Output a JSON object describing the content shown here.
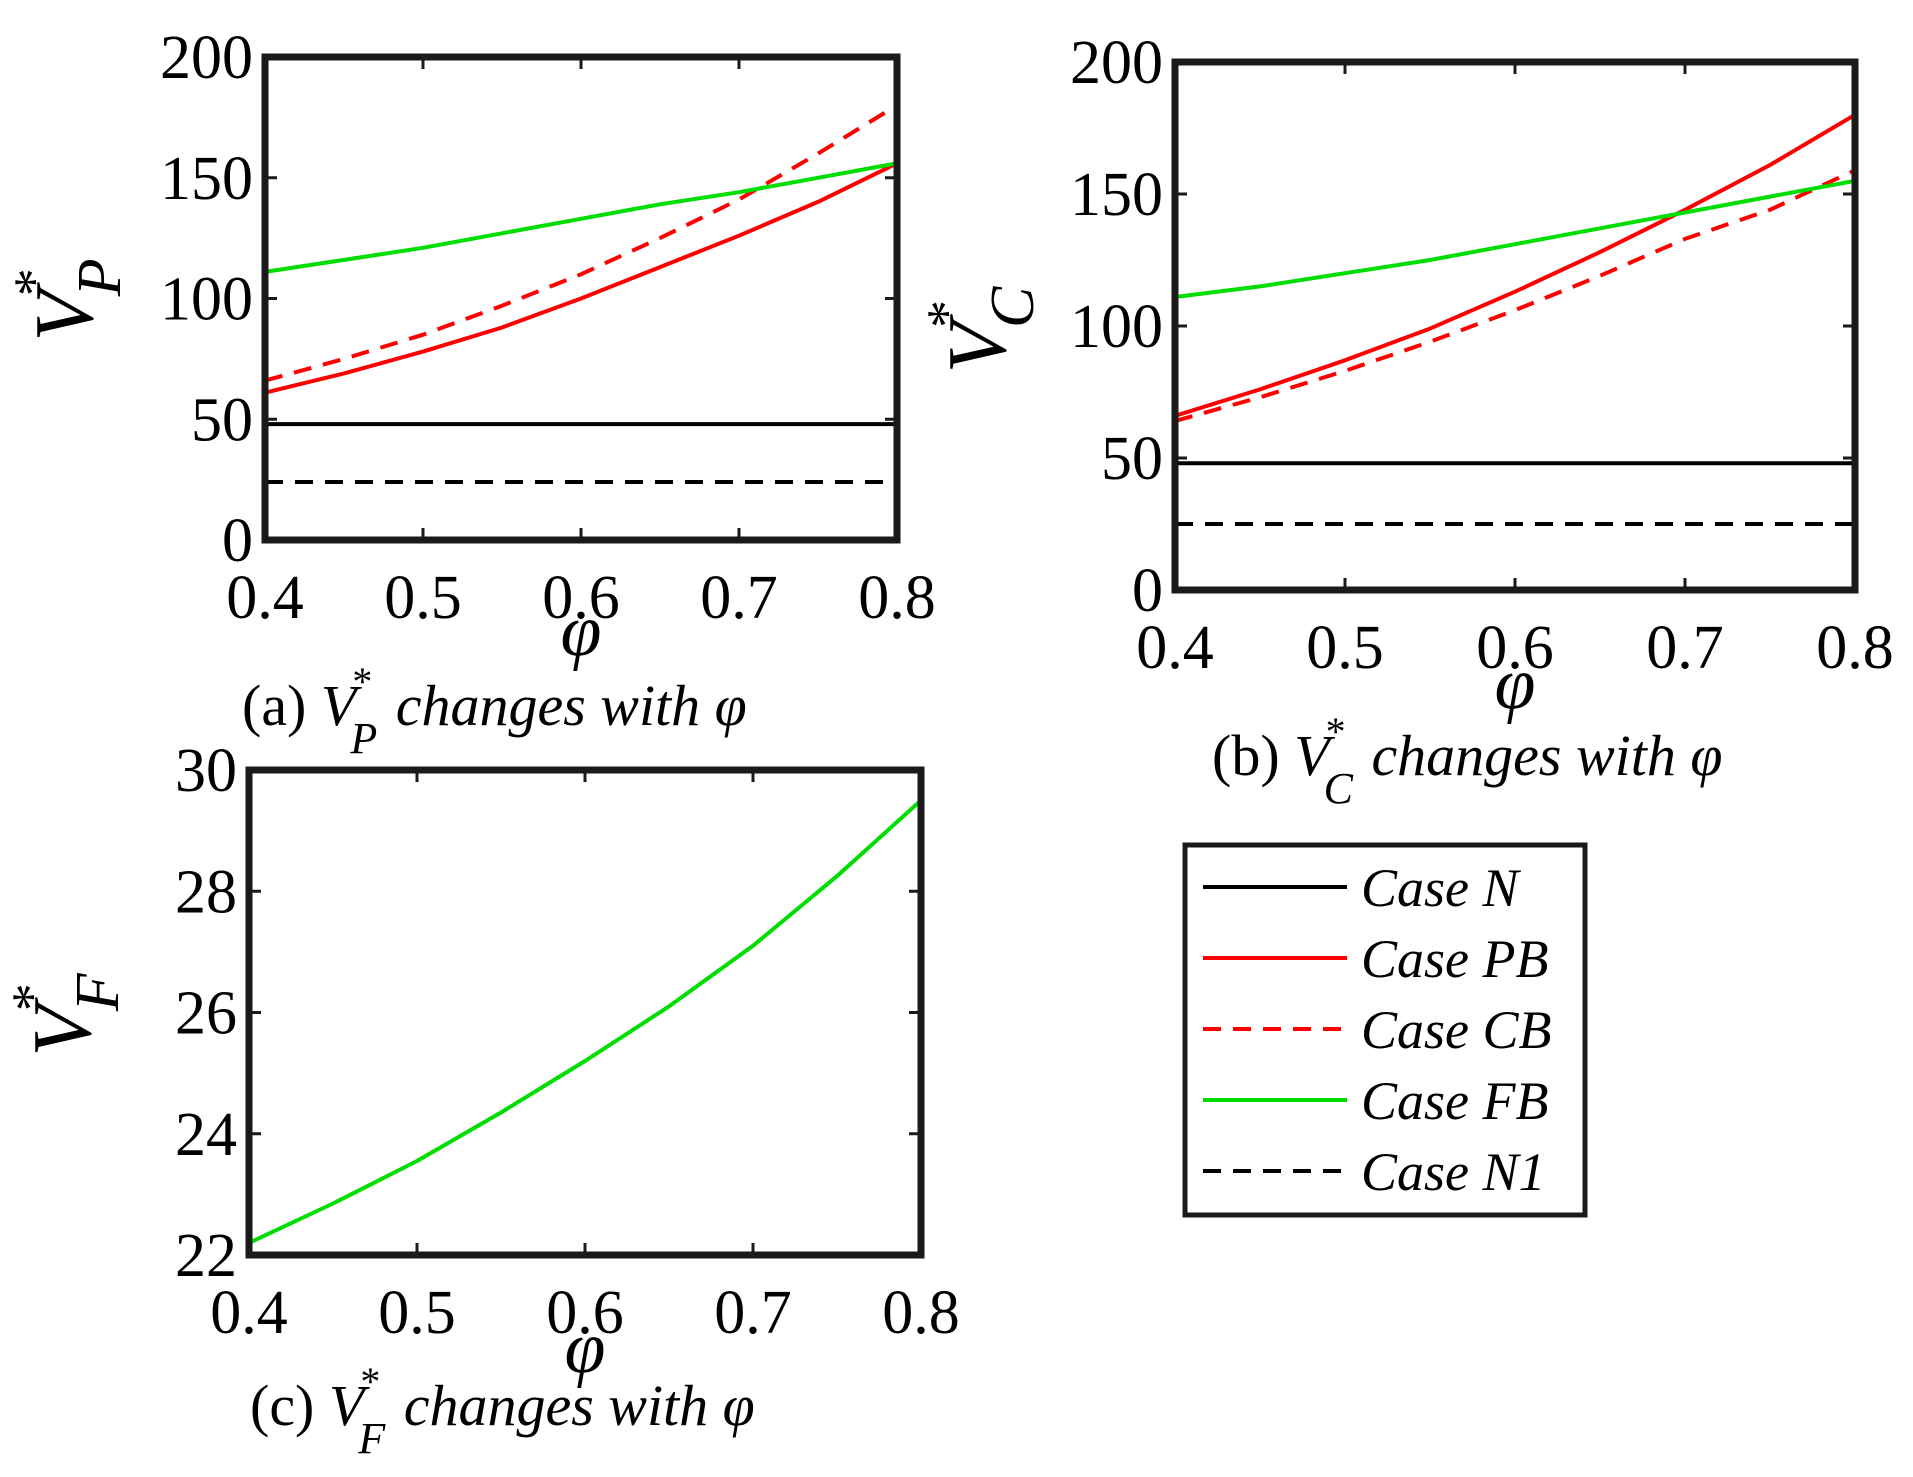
{
  "chart_data": [
    {
      "type": "line",
      "panel": "a",
      "x": [
        0.4,
        0.45,
        0.5,
        0.55,
        0.6,
        0.65,
        0.7,
        0.75,
        0.8
      ],
      "xlim": [
        0.4,
        0.8
      ],
      "ylim": [
        0,
        200
      ],
      "xticks": [
        "0.4",
        "0.5",
        "0.6",
        "0.7",
        "0.8"
      ],
      "yticks": [
        "0",
        "50",
        "100",
        "150",
        "200"
      ],
      "xlabel": "φ",
      "ylabel": {
        "symbol": "V",
        "sub": "P",
        "sup": "*"
      },
      "caption": {
        "prefix": "(a) ",
        "symbol": "V",
        "sub": "P",
        "sup": "*",
        "text": " changes with φ"
      },
      "series": [
        {
          "key": "N",
          "values": [
            48,
            48,
            48,
            48,
            48,
            48,
            48,
            48,
            48
          ]
        },
        {
          "key": "PB",
          "values": [
            61,
            69,
            78,
            88,
            100,
            113,
            126,
            140,
            156
          ]
        },
        {
          "key": "CB",
          "values": [
            66,
            75,
            85,
            97,
            110,
            125,
            141,
            160,
            180
          ]
        },
        {
          "key": "FB",
          "values": [
            111,
            116,
            121,
            127,
            133,
            139,
            144,
            150,
            156
          ]
        },
        {
          "key": "N1",
          "values": [
            24,
            24,
            24,
            24,
            24,
            24,
            24,
            24,
            24
          ]
        }
      ]
    },
    {
      "type": "line",
      "panel": "b",
      "x": [
        0.4,
        0.45,
        0.5,
        0.55,
        0.6,
        0.65,
        0.7,
        0.75,
        0.8
      ],
      "xlim": [
        0.4,
        0.8
      ],
      "ylim": [
        0,
        200
      ],
      "xticks": [
        "0.4",
        "0.5",
        "0.6",
        "0.7",
        "0.8"
      ],
      "yticks": [
        "0",
        "50",
        "100",
        "150",
        "200"
      ],
      "xlabel": "φ",
      "ylabel": {
        "symbol": "V",
        "sub": "C",
        "sup": "*"
      },
      "caption": {
        "prefix": "(b) ",
        "symbol": "V",
        "sub": "C",
        "sup": "*",
        "text": " changes with φ"
      },
      "series": [
        {
          "key": "N",
          "values": [
            48,
            48,
            48,
            48,
            48,
            48,
            48,
            48,
            48
          ]
        },
        {
          "key": "PB",
          "values": [
            66,
            76,
            87,
            99,
            113,
            128,
            144,
            161,
            180
          ]
        },
        {
          "key": "CB",
          "values": [
            64,
            73,
            83,
            94,
            106,
            119,
            133,
            144,
            159
          ]
        },
        {
          "key": "FB",
          "values": [
            111,
            115,
            120,
            125,
            131,
            137,
            143,
            149,
            155
          ]
        },
        {
          "key": "N1",
          "values": [
            25,
            25,
            25,
            25,
            25,
            25,
            25,
            25,
            25
          ]
        }
      ]
    },
    {
      "type": "line",
      "panel": "c",
      "x": [
        0.4,
        0.45,
        0.5,
        0.55,
        0.6,
        0.65,
        0.7,
        0.75,
        0.8
      ],
      "xlim": [
        0.4,
        0.8
      ],
      "ylim": [
        22,
        30
      ],
      "xticks": [
        "0.4",
        "0.5",
        "0.6",
        "0.7",
        "0.8"
      ],
      "yticks": [
        "22",
        "24",
        "26",
        "28",
        "30"
      ],
      "xlabel": "φ",
      "ylabel": {
        "symbol": "V",
        "sub": "F",
        "sup": "*"
      },
      "caption": {
        "prefix": "(c) ",
        "symbol": "V",
        "sub": "F",
        "sup": "*",
        "text": " changes with φ"
      },
      "series": [
        {
          "key": "FB",
          "values": [
            22.2,
            22.85,
            23.55,
            24.35,
            25.2,
            26.1,
            27.1,
            28.25,
            29.5
          ]
        }
      ]
    }
  ],
  "styles": {
    "N": {
      "color": "#000000",
      "dash": "solid"
    },
    "PB": {
      "color": "#ff0000",
      "dash": "solid"
    },
    "CB": {
      "color": "#ff0000",
      "dash": "dashed"
    },
    "FB": {
      "color": "#00dd00",
      "dash": "solid"
    },
    "N1": {
      "color": "#000000",
      "dash": "dashed"
    }
  },
  "legend": {
    "placement": "below panel (b)",
    "entries": [
      {
        "key": "N",
        "label": "Case N"
      },
      {
        "key": "PB",
        "label": "Case PB"
      },
      {
        "key": "CB",
        "label": "Case CB"
      },
      {
        "key": "FB",
        "label": "Case FB"
      },
      {
        "key": "N1",
        "label": "Case N1"
      }
    ]
  }
}
